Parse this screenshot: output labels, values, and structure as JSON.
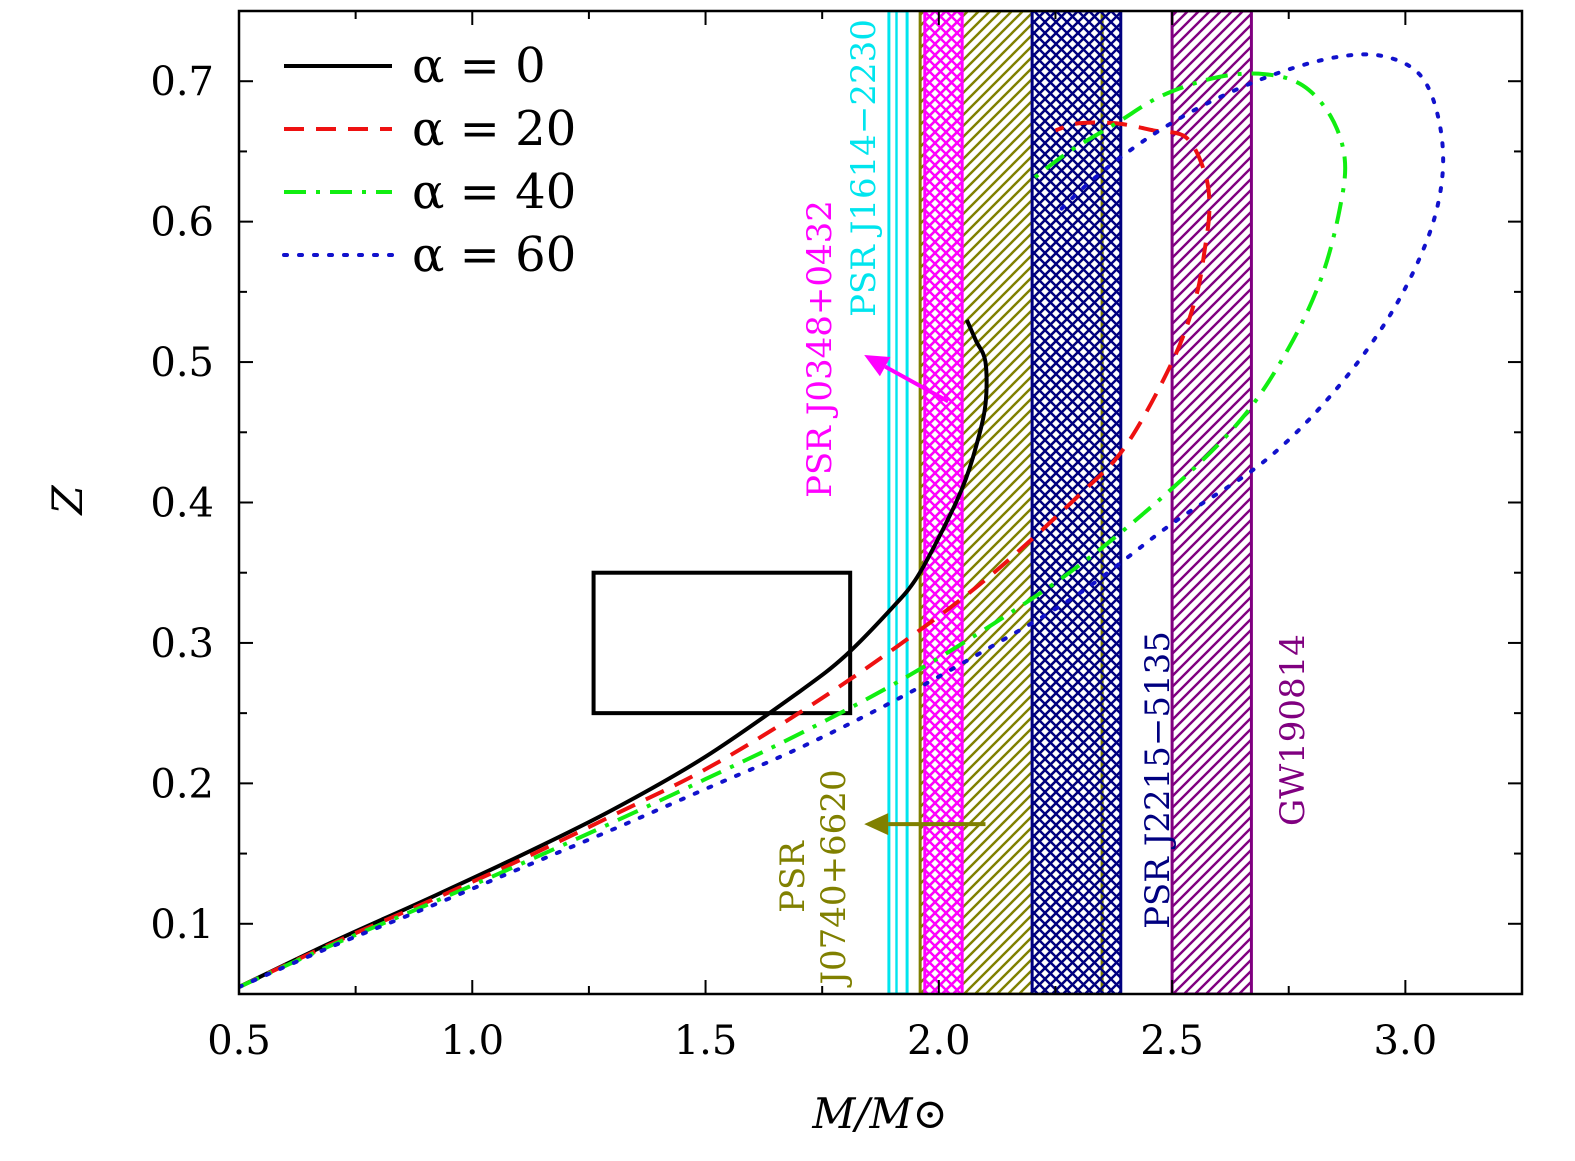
{
  "chart_data": {
    "type": "line",
    "xlabel": "M/M⊙",
    "ylabel": "Z",
    "xlim": [
      0.5,
      3.25
    ],
    "ylim": [
      0.05,
      0.75
    ],
    "x_ticks": [
      0.5,
      1.0,
      1.5,
      2.0,
      2.5,
      3.0
    ],
    "x_tick_labels": [
      "0.5",
      "1.0",
      "1.5",
      "2.0",
      "2.5",
      "3.0"
    ],
    "y_ticks": [
      0.1,
      0.2,
      0.3,
      0.4,
      0.5,
      0.6,
      0.7
    ],
    "y_tick_labels": [
      "0.1",
      "0.2",
      "0.3",
      "0.4",
      "0.5",
      "0.6",
      "0.7"
    ],
    "legend_position": "top-left",
    "series": [
      {
        "name": "α = 0",
        "color": "#000000",
        "style": "solid",
        "points": [
          [
            0.5,
            0.055
          ],
          [
            0.7,
            0.087
          ],
          [
            0.9,
            0.117
          ],
          [
            1.1,
            0.148
          ],
          [
            1.3,
            0.181
          ],
          [
            1.5,
            0.219
          ],
          [
            1.7,
            0.265
          ],
          [
            1.8,
            0.291
          ],
          [
            1.9,
            0.325
          ],
          [
            1.95,
            0.345
          ],
          [
            2.0,
            0.375
          ],
          [
            2.05,
            0.41
          ],
          [
            2.08,
            0.44
          ],
          [
            2.1,
            0.47
          ],
          [
            2.1,
            0.5
          ],
          [
            2.08,
            0.515
          ],
          [
            2.06,
            0.53
          ]
        ]
      },
      {
        "name": "α = 20",
        "color": "#ee1111",
        "style": "dashed",
        "points": [
          [
            0.5,
            0.055
          ],
          [
            0.7,
            0.086
          ],
          [
            0.9,
            0.115
          ],
          [
            1.1,
            0.145
          ],
          [
            1.3,
            0.177
          ],
          [
            1.5,
            0.21
          ],
          [
            1.7,
            0.25
          ],
          [
            1.9,
            0.295
          ],
          [
            2.1,
            0.345
          ],
          [
            2.3,
            0.405
          ],
          [
            2.4,
            0.44
          ],
          [
            2.5,
            0.5
          ],
          [
            2.55,
            0.545
          ],
          [
            2.57,
            0.58
          ],
          [
            2.58,
            0.61
          ],
          [
            2.57,
            0.635
          ],
          [
            2.53,
            0.66
          ],
          [
            2.46,
            0.665
          ],
          [
            2.38,
            0.67
          ],
          [
            2.3,
            0.67
          ],
          [
            2.25,
            0.665
          ]
        ]
      },
      {
        "name": "α = 40",
        "color": "#11ee11",
        "style": "dashdot",
        "points": [
          [
            0.5,
            0.055
          ],
          [
            0.7,
            0.085
          ],
          [
            0.9,
            0.113
          ],
          [
            1.1,
            0.142
          ],
          [
            1.3,
            0.172
          ],
          [
            1.5,
            0.203
          ],
          [
            1.7,
            0.235
          ],
          [
            1.9,
            0.27
          ],
          [
            2.1,
            0.31
          ],
          [
            2.3,
            0.355
          ],
          [
            2.5,
            0.41
          ],
          [
            2.65,
            0.46
          ],
          [
            2.75,
            0.51
          ],
          [
            2.82,
            0.56
          ],
          [
            2.86,
            0.61
          ],
          [
            2.87,
            0.645
          ],
          [
            2.84,
            0.675
          ],
          [
            2.78,
            0.697
          ],
          [
            2.7,
            0.705
          ],
          [
            2.6,
            0.703
          ],
          [
            2.48,
            0.69
          ],
          [
            2.38,
            0.67
          ],
          [
            2.28,
            0.65
          ],
          [
            2.2,
            0.63
          ]
        ]
      },
      {
        "name": "α = 60",
        "color": "#1111cc",
        "style": "dotted",
        "points": [
          [
            0.5,
            0.055
          ],
          [
            0.7,
            0.084
          ],
          [
            0.9,
            0.111
          ],
          [
            1.1,
            0.139
          ],
          [
            1.3,
            0.167
          ],
          [
            1.5,
            0.196
          ],
          [
            1.7,
            0.225
          ],
          [
            1.9,
            0.258
          ],
          [
            2.1,
            0.295
          ],
          [
            2.3,
            0.335
          ],
          [
            2.5,
            0.385
          ],
          [
            2.7,
            0.43
          ],
          [
            2.85,
            0.48
          ],
          [
            2.97,
            0.535
          ],
          [
            3.05,
            0.59
          ],
          [
            3.08,
            0.635
          ],
          [
            3.07,
            0.675
          ],
          [
            3.03,
            0.705
          ],
          [
            2.95,
            0.718
          ],
          [
            2.85,
            0.717
          ],
          [
            2.72,
            0.705
          ],
          [
            2.58,
            0.685
          ],
          [
            2.45,
            0.66
          ],
          [
            2.33,
            0.63
          ],
          [
            2.25,
            0.605
          ]
        ]
      }
    ],
    "bands": [
      {
        "name": "PSR J1614-2230",
        "x0": 1.893,
        "x1": 1.932,
        "color": "#00e5ee",
        "pattern": "vertical"
      },
      {
        "name": "PSR J0348+0432",
        "x0": 1.97,
        "x1": 2.05,
        "color": "#ff00ff",
        "pattern": "cross"
      },
      {
        "name": "PSR J0740+6620",
        "x0": 1.96,
        "x1": 2.35,
        "color": "#808000",
        "pattern": "diagonal"
      },
      {
        "name": "PSR J2215-5135",
        "x0": 2.2,
        "x1": 2.39,
        "color": "#000080",
        "pattern": "cross"
      },
      {
        "name": "GW190814",
        "x0": 2.5,
        "x1": 2.67,
        "color": "#800080",
        "pattern": "diagonal"
      }
    ],
    "box": {
      "x0": 1.26,
      "x1": 1.81,
      "y0": 0.25,
      "y1": 0.35
    },
    "arrows": [
      {
        "label": "PSR J0348+0432",
        "from": [
          2.02,
          0.472
        ],
        "to": [
          1.84,
          0.505
        ],
        "color": "#ff00ff"
      },
      {
        "label": "PSR J0740+6620",
        "from": [
          2.1,
          0.171
        ],
        "to": [
          1.84,
          0.171
        ],
        "color": "#808000"
      }
    ],
    "annotations": [
      {
        "text": "PSR J1614−2230",
        "color": "#00e5ee"
      },
      {
        "text": "PSR J0348+0432",
        "color": "#ff00ff"
      },
      {
        "text": "PSR",
        "color": "#808000"
      },
      {
        "text": "J0740+6620",
        "color": "#808000"
      },
      {
        "text": "PSR J2215−5135",
        "color": "#000080"
      },
      {
        "text": "GW190814",
        "color": "#800080"
      }
    ]
  }
}
